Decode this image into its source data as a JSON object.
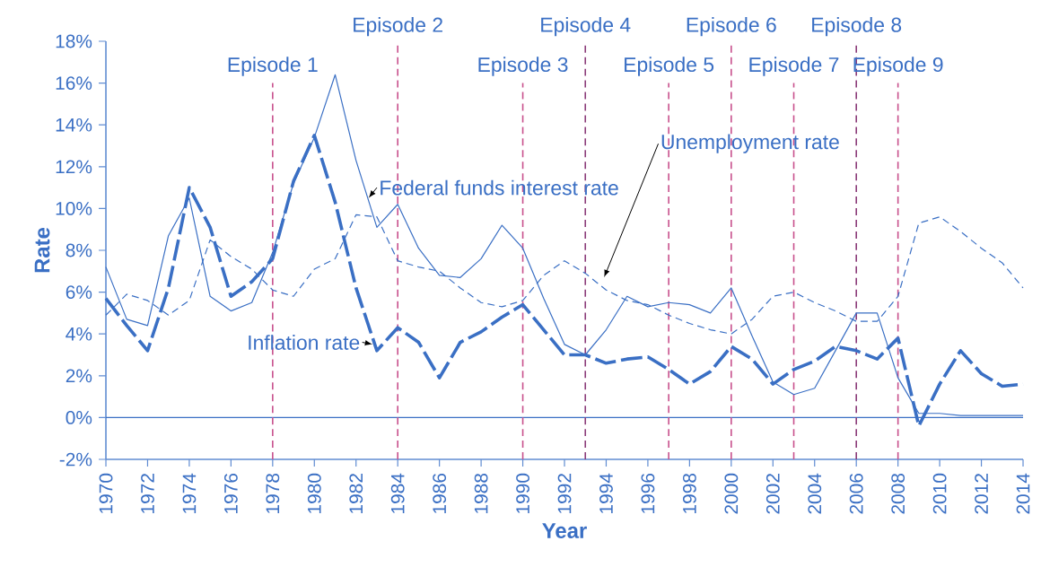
{
  "chart_data": {
    "type": "line",
    "xlabel": "Year",
    "ylabel": "Rate",
    "x": [
      1970,
      1971,
      1972,
      1973,
      1974,
      1975,
      1976,
      1977,
      1978,
      1979,
      1980,
      1981,
      1982,
      1983,
      1984,
      1985,
      1986,
      1987,
      1988,
      1989,
      1990,
      1991,
      1992,
      1993,
      1994,
      1995,
      1996,
      1997,
      1998,
      1999,
      2000,
      2001,
      2002,
      2003,
      2004,
      2005,
      2006,
      2007,
      2008,
      2009,
      2010,
      2011,
      2012,
      2013,
      2014
    ],
    "series": [
      {
        "name": "Federal funds interest rate",
        "color": "#3a6fc4",
        "line_style": "solid",
        "values": [
          7.2,
          4.7,
          4.4,
          8.7,
          10.5,
          5.8,
          5.1,
          5.5,
          7.9,
          11.2,
          13.4,
          16.4,
          12.3,
          9.1,
          10.2,
          8.1,
          6.8,
          6.7,
          7.6,
          9.2,
          8.1,
          5.7,
          3.5,
          3.0,
          4.2,
          5.8,
          5.3,
          5.5,
          5.4,
          5.0,
          6.2,
          3.9,
          1.7,
          1.1,
          1.4,
          3.2,
          5.0,
          5.0,
          1.9,
          0.2,
          0.2,
          0.1,
          0.1,
          0.1,
          0.1
        ]
      },
      {
        "name": "Unemployment rate",
        "color": "#3a6fc4",
        "line_style": "dashed",
        "values": [
          4.9,
          5.9,
          5.6,
          4.9,
          5.6,
          8.5,
          7.7,
          7.1,
          6.1,
          5.8,
          7.1,
          7.6,
          9.7,
          9.6,
          7.5,
          7.2,
          7.0,
          6.2,
          5.5,
          5.3,
          5.6,
          6.8,
          7.5,
          6.9,
          6.1,
          5.6,
          5.4,
          4.9,
          4.5,
          4.2,
          4.0,
          4.7,
          5.8,
          6.0,
          5.5,
          5.1,
          4.6,
          4.6,
          5.8,
          9.3,
          9.6,
          8.9,
          8.1,
          7.4,
          6.2
        ]
      },
      {
        "name": "Inflation rate",
        "color": "#3a6fc4",
        "line_style": "dashed",
        "values": [
          5.7,
          4.4,
          3.2,
          6.2,
          11.0,
          9.1,
          5.8,
          6.5,
          7.6,
          11.3,
          13.5,
          10.3,
          6.2,
          3.2,
          4.3,
          3.6,
          1.9,
          3.6,
          4.1,
          4.8,
          5.4,
          4.2,
          3.0,
          3.0,
          2.6,
          2.8,
          2.9,
          2.3,
          1.6,
          2.2,
          3.4,
          2.8,
          1.6,
          2.3,
          2.7,
          3.4,
          3.2,
          2.8,
          3.8,
          -0.4,
          1.6,
          3.2,
          2.1,
          1.5,
          1.6
        ]
      }
    ],
    "xlim": [
      1970,
      2014
    ],
    "xticks": [
      1970,
      1972,
      1974,
      1976,
      1978,
      1980,
      1982,
      1984,
      1986,
      1988,
      1990,
      1992,
      1994,
      1996,
      1998,
      2000,
      2002,
      2004,
      2006,
      2008,
      2010,
      2012,
      2014
    ],
    "ylim": [
      -2,
      18
    ],
    "yticks": [
      {
        "value": -2,
        "label": "-2%"
      },
      {
        "value": 0,
        "label": "0%"
      },
      {
        "value": 2,
        "label": "2%"
      },
      {
        "value": 4,
        "label": "4%"
      },
      {
        "value": 6,
        "label": "6%"
      },
      {
        "value": 8,
        "label": "8%"
      },
      {
        "value": 10,
        "label": "10%"
      },
      {
        "value": 12,
        "label": "12%"
      },
      {
        "value": 14,
        "label": "14%"
      },
      {
        "value": 16,
        "label": "16%"
      },
      {
        "value": 18,
        "label": "18%"
      }
    ],
    "ref_lines": [
      {
        "axis": "y",
        "value": 0,
        "color": "#3a6fc4",
        "line_style": "solid"
      },
      {
        "axis": "x",
        "value": 1978,
        "label": "Episode 1",
        "color": "#c8508c",
        "line_style": "dashed"
      },
      {
        "axis": "x",
        "value": 1984,
        "label": "Episode 2",
        "color": "#c8508c",
        "line_style": "dashed"
      },
      {
        "axis": "x",
        "value": 1990,
        "label": "Episode 3",
        "color": "#c8508c",
        "line_style": "dashed"
      },
      {
        "axis": "x",
        "value": 1993,
        "label": "Episode 4",
        "color": "#8a3a78",
        "line_style": "dashed"
      },
      {
        "axis": "x",
        "value": 1997,
        "label": "Episode 5",
        "color": "#c8508c",
        "line_style": "dashed"
      },
      {
        "axis": "x",
        "value": 2000,
        "label": "Episode 6",
        "color": "#c8508c",
        "line_style": "dashed"
      },
      {
        "axis": "x",
        "value": 2003,
        "label": "Episode 7",
        "color": "#c8508c",
        "line_style": "dashed"
      },
      {
        "axis": "x",
        "value": 2006,
        "label": "Episode 8",
        "color": "#8a3a78",
        "line_style": "dashed"
      },
      {
        "axis": "x",
        "value": 2008,
        "label": "Episode 9",
        "color": "#c8508c",
        "line_style": "dashed"
      }
    ],
    "grid": false,
    "legend": false
  }
}
